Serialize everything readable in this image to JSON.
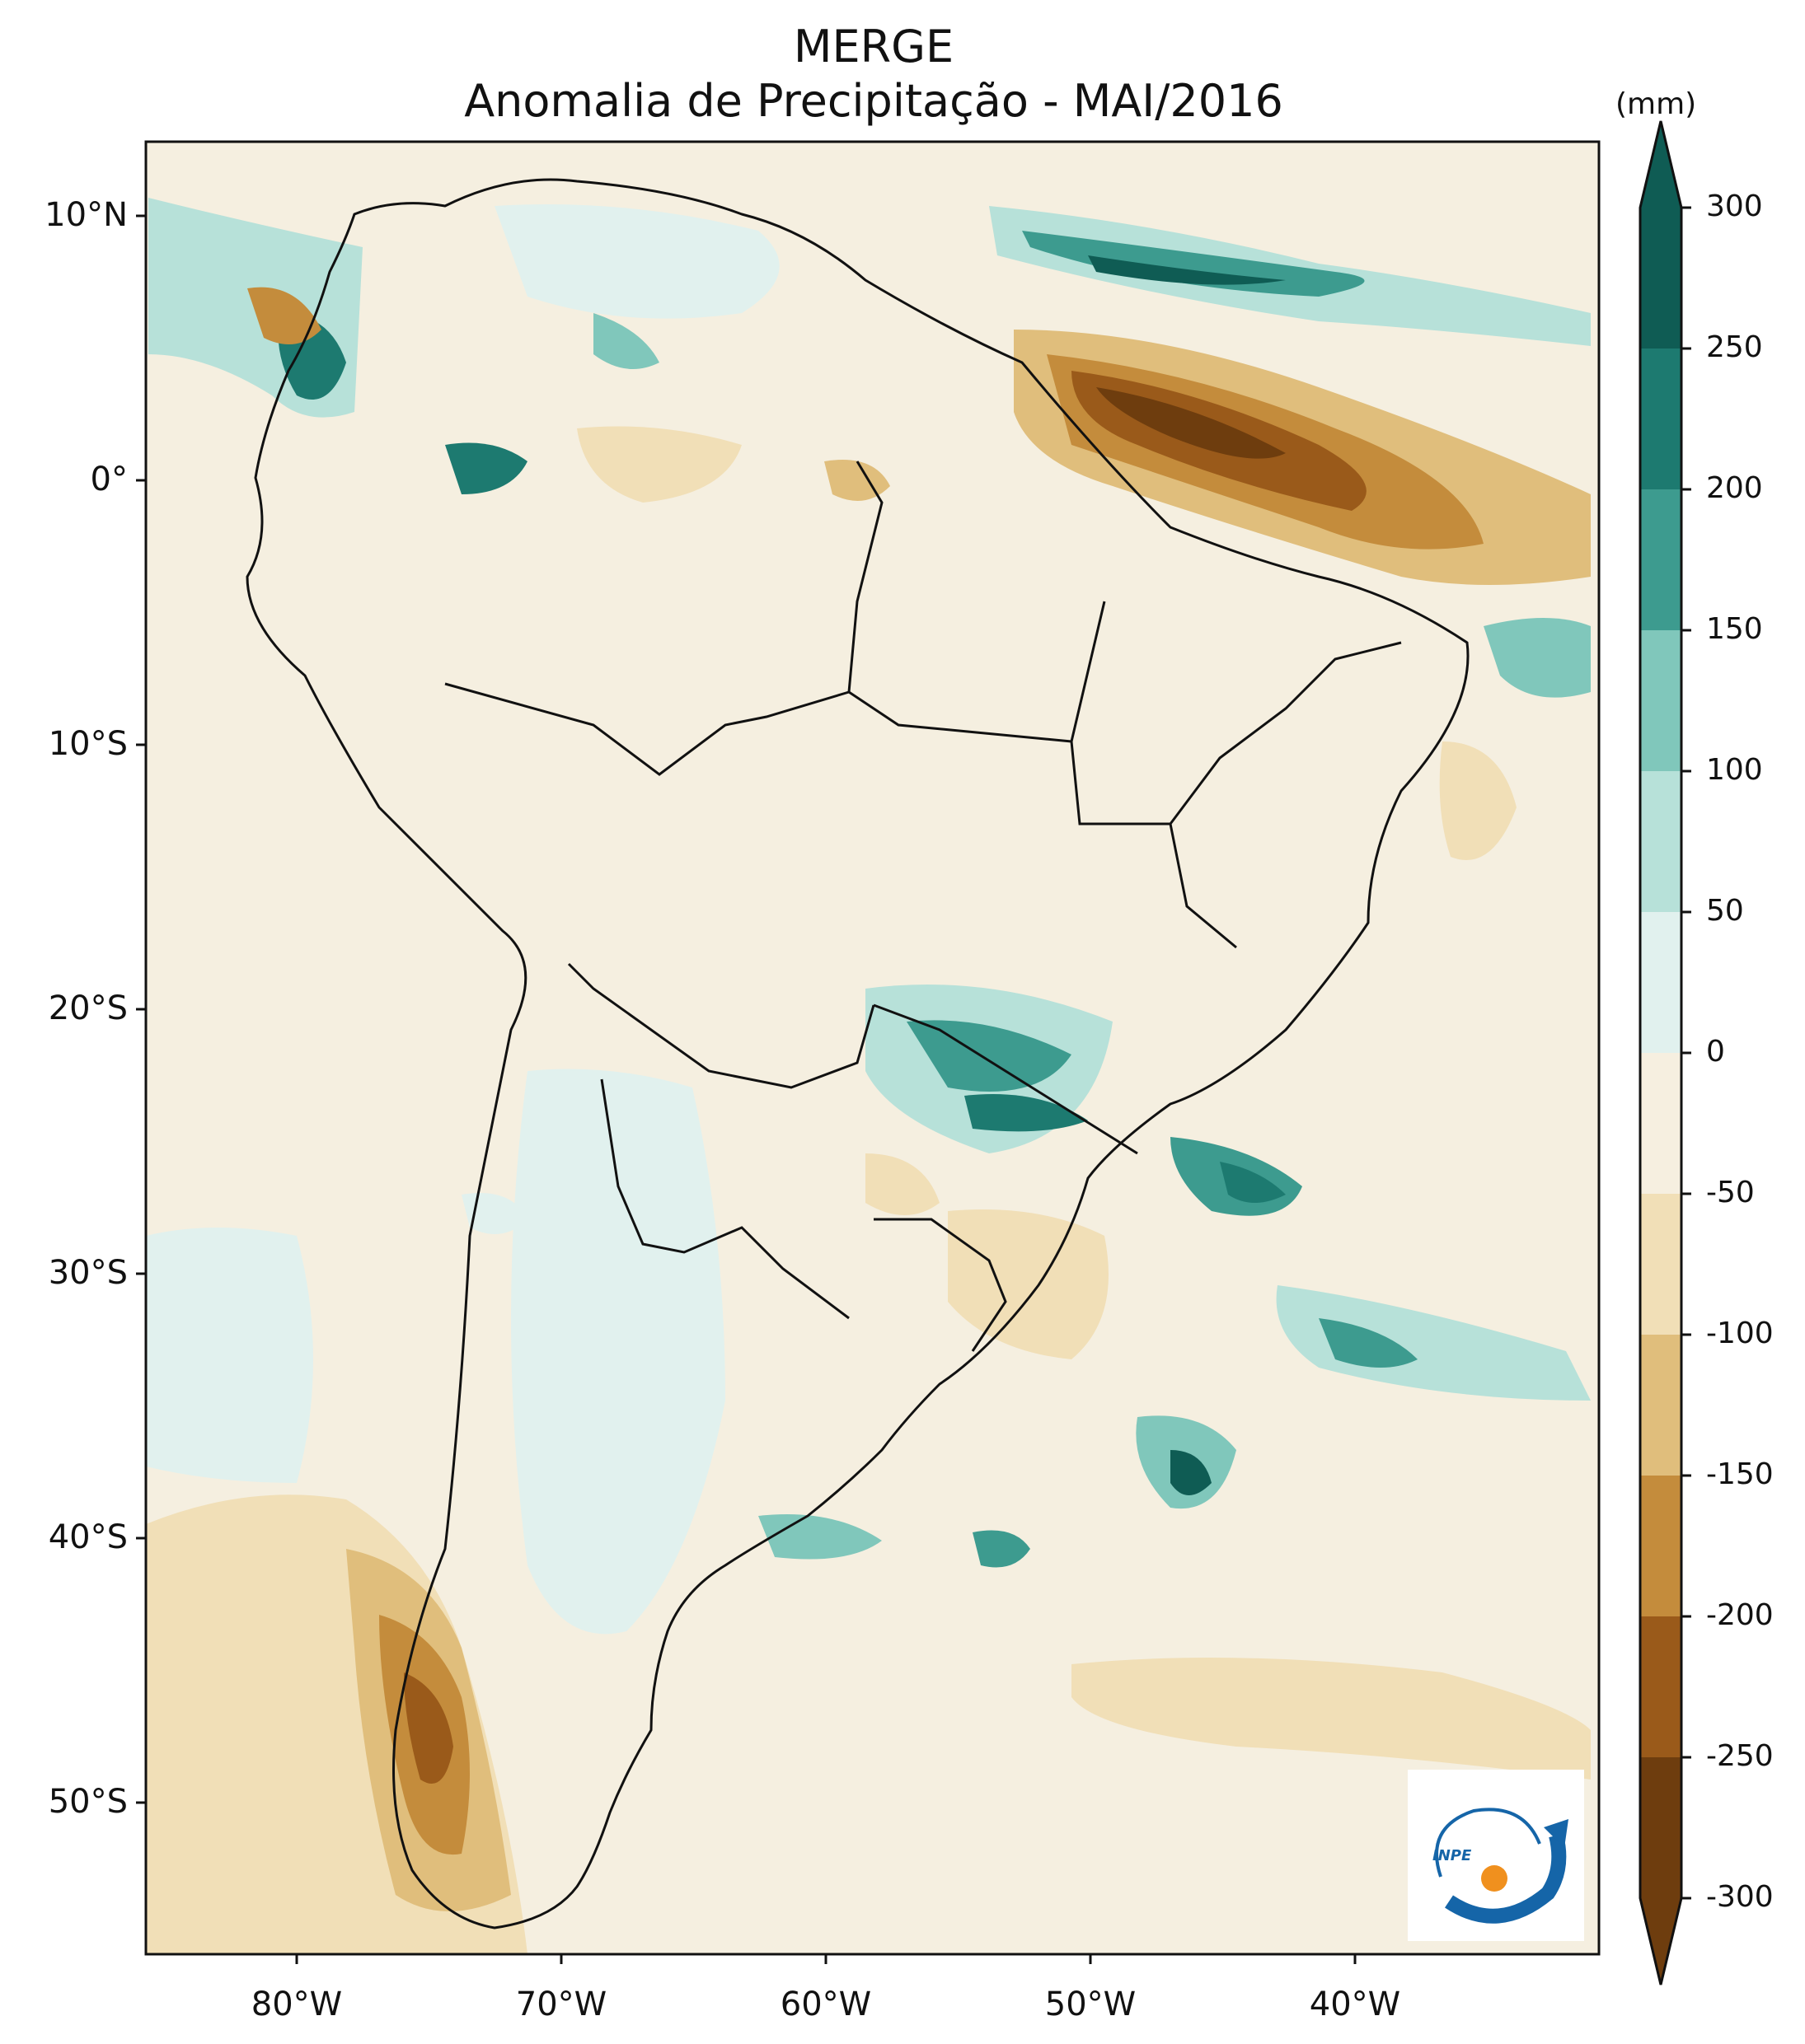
{
  "title": {
    "line1": "MERGE",
    "line2": "Anomalia de Precipitação - MAI/2016"
  },
  "axes": {
    "lat_labels": [
      "10°N",
      "0°",
      "10°S",
      "20°S",
      "30°S",
      "40°S",
      "50°S"
    ],
    "lon_labels": [
      "80°W",
      "70°W",
      "60°W",
      "50°W",
      "40°W"
    ]
  },
  "colorbar": {
    "units": "(mm)",
    "ticks": [
      "300",
      "250",
      "200",
      "150",
      "100",
      "50",
      "0",
      "-50",
      "-100",
      "-150",
      "-200",
      "-250",
      "-300"
    ],
    "colors": [
      "#0f5c54",
      "#1d7a70",
      "#3d9b8f",
      "#80c7bb",
      "#b7e1d9",
      "#e1f1ee",
      "#f6efe0",
      "#f1dfb7",
      "#e0be7c",
      "#c48c3c",
      "#9a5a1a",
      "#6e3d0e"
    ],
    "ocean": "#f5efe0",
    "land": "#f5efe0"
  },
  "logo": {
    "text": "INPE"
  }
}
